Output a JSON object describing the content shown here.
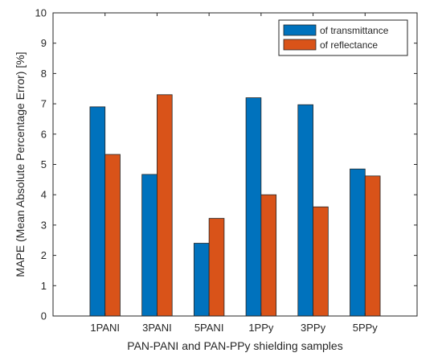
{
  "chart_data": {
    "type": "bar",
    "categories": [
      "1PANI",
      "3PANI",
      "5PANI",
      "1PPy",
      "3PPy",
      "5PPy"
    ],
    "series": [
      {
        "name": "of transmittance",
        "color": "#0072BD",
        "values": [
          6.9,
          4.67,
          2.4,
          7.2,
          6.97,
          4.85
        ]
      },
      {
        "name": "of reflectance",
        "color": "#D95319",
        "values": [
          5.33,
          7.3,
          3.22,
          4.0,
          3.6,
          4.62
        ]
      }
    ],
    "xlabel": "PAN-PANI and PAN-PPy shielding samples",
    "ylabel": "MAPE (Mean Absolute Percentage Error) [%]",
    "ylim": [
      0,
      10
    ],
    "yticks": [
      0,
      1,
      2,
      3,
      4,
      5,
      6,
      7,
      8,
      9,
      10
    ],
    "grid": false,
    "legend_position": "top-right"
  }
}
